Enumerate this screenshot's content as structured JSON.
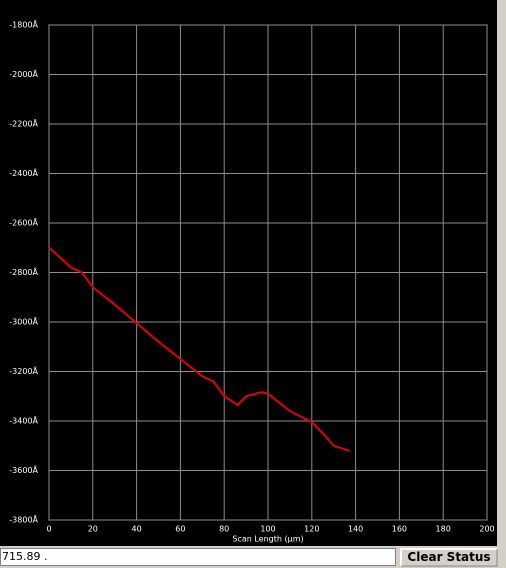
{
  "chart_data": {
    "type": "line",
    "xlabel": "Scan Length (μm)",
    "x": [
      0,
      5,
      10,
      15,
      20,
      30,
      40,
      50,
      60,
      70,
      75,
      80,
      86,
      90,
      97,
      100,
      110,
      120,
      125,
      130,
      137
    ],
    "values": [
      -2700,
      -2740,
      -2780,
      -2800,
      -2860,
      -2930,
      -3005,
      -3080,
      -3150,
      -3220,
      -3240,
      -3300,
      -3335,
      -3300,
      -3283,
      -3290,
      -3360,
      -3405,
      -3450,
      -3500,
      -3520
    ],
    "color": "#e00000",
    "xlim": [
      0,
      200
    ],
    "xticks": [
      0,
      20,
      40,
      60,
      80,
      100,
      120,
      140,
      160,
      180,
      200
    ],
    "ylim": [
      -3800,
      -1800
    ],
    "yticks": [
      {
        "value": -1800,
        "label": "-1800Å"
      },
      {
        "value": -2000,
        "label": "-2000Å"
      },
      {
        "value": -2200,
        "label": "-2200Å"
      },
      {
        "value": -2400,
        "label": "-2400Å"
      },
      {
        "value": -2600,
        "label": "-2600Å"
      },
      {
        "value": -2800,
        "label": "-2800Å"
      },
      {
        "value": -3000,
        "label": "-3000Å"
      },
      {
        "value": -3200,
        "label": "-3200Å"
      },
      {
        "value": -3400,
        "label": "-3400Å"
      },
      {
        "value": -3600,
        "label": "-3600Å"
      },
      {
        "value": -3800,
        "label": "-3800Å"
      }
    ],
    "grid": true
  },
  "status_bar": {
    "text": "715.89 .",
    "button": "Clear Status"
  }
}
